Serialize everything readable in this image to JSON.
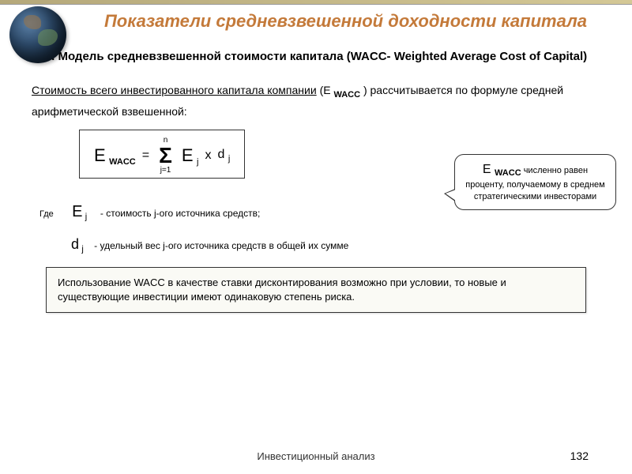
{
  "colors": {
    "title_color": "#c47a3a",
    "header_bar_start": "#b5a87a",
    "header_bar_end": "#d4c896",
    "box_border": "#333333",
    "background": "#ffffff",
    "note_bg": "#fafaf5"
  },
  "title": "Показатели средневзвешенной доходности капитала",
  "subtitle": "2. Модель средневзвешенной  стоимости капитала (WACC- Weighted  Average Cost of Capital)",
  "description_prefix": "Стоимость всего инвестированного капитала компании",
  "description_var": "(Е ",
  "description_var_sub": "WACC",
  "description_suffix": " ) рассчитывается по формуле средней арифметической взвешенной:",
  "formula": {
    "left_var": "Е",
    "left_sub": "WACC",
    "equals": "=",
    "sum_upper": "n",
    "sum_symbol": "Σ",
    "sum_lower": "j=1",
    "term1": "E",
    "term1_sub": "j",
    "mult": "x",
    "term2": "d",
    "term2_sub": "j"
  },
  "bubble": {
    "var": "Е ",
    "var_sub": "WACC",
    "text": " численно равен проценту, получаемому в среднем стратегическими инвесторами"
  },
  "legend": {
    "where": "Где",
    "item1_var": "E",
    "item1_sub": "j",
    "item1_text": "- стоимость j-ого источника средств;",
    "item2_var": "d",
    "item2_sub": "j",
    "item2_text": "-  удельный вес j-ого источника средств  в общей их сумме"
  },
  "note": "Использование WACC в качестве ставки дисконтирования возможно при условии, то новые и существующие инвестиции имеют одинаковую степень риска.",
  "footer": "Инвестиционный анализ",
  "page_number": "132"
}
